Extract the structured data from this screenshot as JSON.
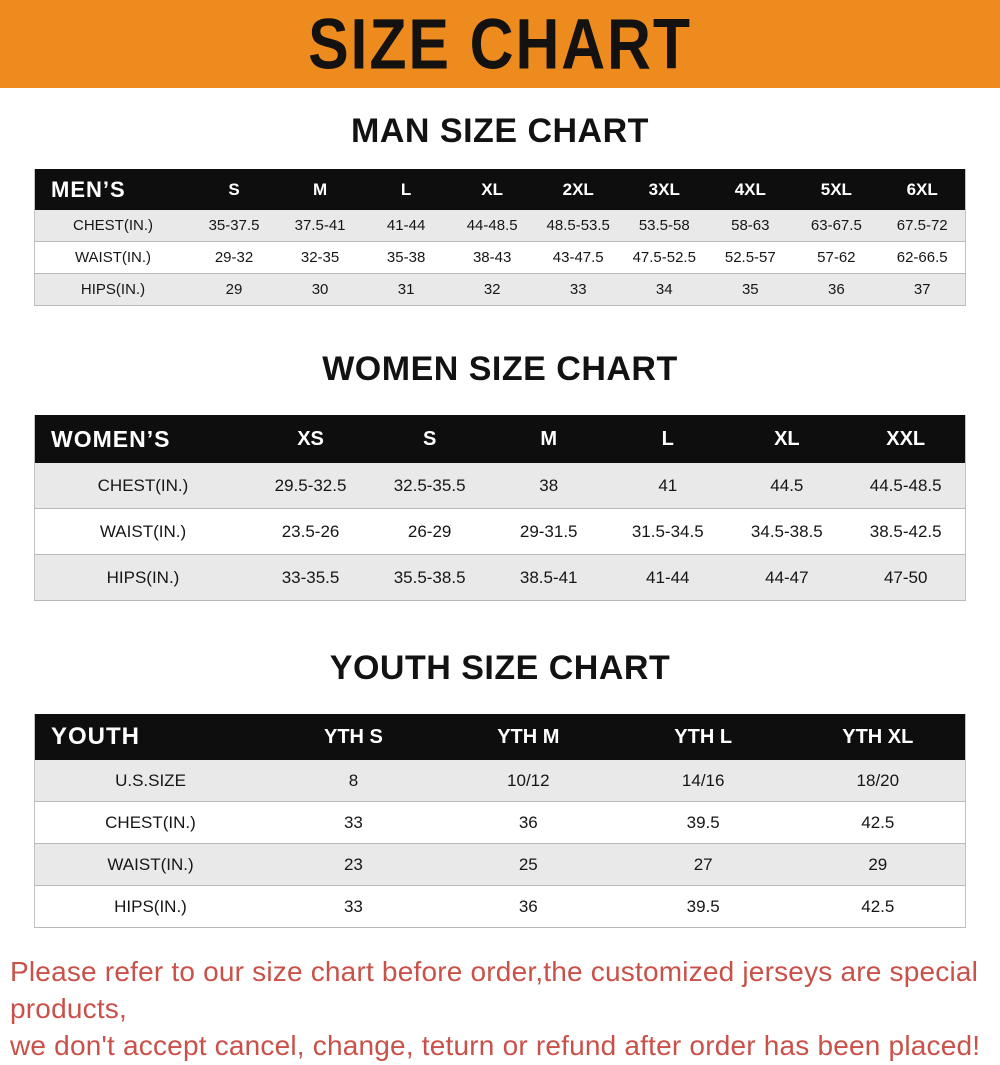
{
  "banner": {
    "title": "SIZE CHART",
    "bg_color": "#ED8B1E",
    "text_color": "#141210"
  },
  "colors": {
    "table_header_bg": "#0e0e0e",
    "table_header_text": "#ffffff",
    "row_shade": "#e9e9e9",
    "disclaimer_text": "#C95149"
  },
  "chart_data": [
    {
      "type": "table",
      "title": "MAN SIZE CHART",
      "header": [
        "MEN’S",
        "S",
        "M",
        "L",
        "XL",
        "2XL",
        "3XL",
        "4XL",
        "5XL",
        "6XL"
      ],
      "rows": [
        [
          "CHEST(IN.)",
          "35-37.5",
          "37.5-41",
          "41-44",
          "44-48.5",
          "48.5-53.5",
          "53.5-58",
          "58-63",
          "63-67.5",
          "67.5-72"
        ],
        [
          "WAIST(IN.)",
          "29-32",
          "32-35",
          "35-38",
          "38-43",
          "43-47.5",
          "47.5-52.5",
          "52.5-57",
          "57-62",
          "62-66.5"
        ],
        [
          "HIPS(IN.)",
          "29",
          "30",
          "31",
          "32",
          "33",
          "34",
          "35",
          "36",
          "37"
        ]
      ]
    },
    {
      "type": "table",
      "title": "WOMEN SIZE CHART",
      "header": [
        "WOMEN’S",
        "XS",
        "S",
        "M",
        "L",
        "XL",
        "XXL"
      ],
      "rows": [
        [
          "CHEST(IN.)",
          "29.5-32.5",
          "32.5-35.5",
          "38",
          "41",
          "44.5",
          "44.5-48.5"
        ],
        [
          "WAIST(IN.)",
          "23.5-26",
          "26-29",
          "29-31.5",
          "31.5-34.5",
          "34.5-38.5",
          "38.5-42.5"
        ],
        [
          "HIPS(IN.)",
          "33-35.5",
          "35.5-38.5",
          "38.5-41",
          "41-44",
          "44-47",
          "47-50"
        ]
      ]
    },
    {
      "type": "table",
      "title": "YOUTH SIZE CHART",
      "header": [
        "YOUTH",
        "YTH S",
        "YTH M",
        "YTH L",
        "YTH XL"
      ],
      "rows": [
        [
          "U.S.SIZE",
          "8",
          "10/12",
          "14/16",
          "18/20"
        ],
        [
          "CHEST(IN.)",
          "33",
          "36",
          "39.5",
          "42.5"
        ],
        [
          "WAIST(IN.)",
          "23",
          "25",
          "27",
          "29"
        ],
        [
          "HIPS(IN.)",
          "33",
          "36",
          "39.5",
          "42.5"
        ]
      ]
    }
  ],
  "disclaimer": {
    "line1": "Please refer to our size chart before order,the customized jerseys are special products,",
    "line2": "we don't accept cancel, change, teturn or refund after order has been placed!"
  }
}
